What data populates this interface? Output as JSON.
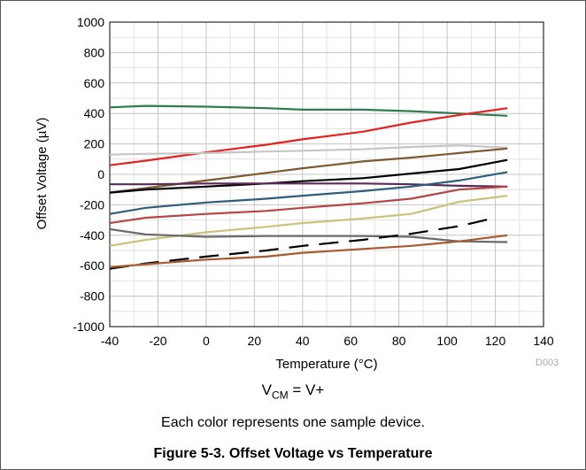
{
  "chart_data": {
    "type": "line",
    "xlabel": "Temperature (°C)",
    "ylabel": "Offset Voltage (µV)",
    "xlim": [
      -40,
      140
    ],
    "ylim": [
      -1000,
      1000
    ],
    "xticks": [
      -40,
      -20,
      0,
      20,
      40,
      60,
      80,
      100,
      120,
      140
    ],
    "yticks": [
      -1000,
      -800,
      -600,
      -400,
      -200,
      0,
      200,
      400,
      600,
      800,
      1000
    ],
    "grid": true,
    "series": [
      {
        "color": "#2e7d4f",
        "x": [
          -40,
          -25,
          0,
          25,
          40,
          65,
          85,
          105,
          125
        ],
        "y": [
          440,
          450,
          445,
          435,
          425,
          425,
          415,
          400,
          385
        ]
      },
      {
        "color": "#e8201e",
        "x": [
          -40,
          -25,
          0,
          25,
          40,
          65,
          85,
          105,
          125
        ],
        "y": [
          60,
          90,
          145,
          195,
          230,
          280,
          340,
          390,
          435
        ]
      },
      {
        "color": "#c6c6c6",
        "x": [
          -40,
          -25,
          0,
          25,
          40,
          65,
          85,
          105,
          125
        ],
        "y": [
          130,
          135,
          140,
          150,
          155,
          165,
          180,
          190,
          175
        ]
      },
      {
        "color": "#7a5a2e",
        "x": [
          -40,
          -25,
          0,
          25,
          40,
          65,
          85,
          105,
          125
        ],
        "y": [
          -120,
          -90,
          -40,
          10,
          40,
          85,
          110,
          140,
          170
        ]
      },
      {
        "color": "#000000",
        "x": [
          -40,
          -25,
          0,
          25,
          40,
          65,
          85,
          105,
          125
        ],
        "y": [
          -120,
          -100,
          -80,
          -60,
          -45,
          -25,
          5,
          35,
          95
        ]
      },
      {
        "color": "#5c2a5a",
        "x": [
          -40,
          -25,
          0,
          25,
          40,
          65,
          85,
          105,
          125
        ],
        "y": [
          -65,
          -65,
          -60,
          -60,
          -60,
          -60,
          -65,
          -75,
          -80
        ]
      },
      {
        "color": "#2e5e7a",
        "x": [
          -40,
          -25,
          0,
          25,
          40,
          65,
          85,
          105,
          125
        ],
        "y": [
          -260,
          -220,
          -185,
          -160,
          -140,
          -110,
          -80,
          -40,
          15
        ]
      },
      {
        "color": "#b84545",
        "x": [
          -40,
          -25,
          0,
          25,
          40,
          65,
          85,
          105,
          125
        ],
        "y": [
          -320,
          -285,
          -260,
          -240,
          -220,
          -190,
          -160,
          -100,
          -80
        ]
      },
      {
        "color": "#c8c47a",
        "x": [
          -40,
          -25,
          0,
          25,
          40,
          65,
          85,
          105,
          125
        ],
        "y": [
          -470,
          -430,
          -380,
          -345,
          -320,
          -290,
          -260,
          -180,
          -140
        ]
      },
      {
        "color": "#6b6b6b",
        "x": [
          -40,
          -25,
          0,
          25,
          40,
          65,
          85,
          105,
          125
        ],
        "y": [
          -360,
          -395,
          -410,
          -405,
          -405,
          -405,
          -410,
          -440,
          -445
        ]
      },
      {
        "color": "#000000",
        "dashed": true,
        "x": [
          -40,
          -25,
          0,
          25,
          40,
          65,
          85,
          105,
          120
        ],
        "y": [
          -620,
          -585,
          -540,
          -500,
          -470,
          -430,
          -390,
          -340,
          -285
        ]
      },
      {
        "color": "#a85a2e",
        "x": [
          -40,
          -25,
          0,
          25,
          40,
          65,
          85,
          105,
          125
        ],
        "y": [
          -610,
          -590,
          -560,
          -540,
          -515,
          -490,
          -470,
          -440,
          -400
        ]
      }
    ]
  },
  "device_code": "D003",
  "condition": {
    "prefix": "V",
    "subscript": "CM",
    "suffix": " = V+"
  },
  "note": "Each color represents one sample device.",
  "figure_caption": "Figure 5-3. Offset Voltage vs Temperature"
}
